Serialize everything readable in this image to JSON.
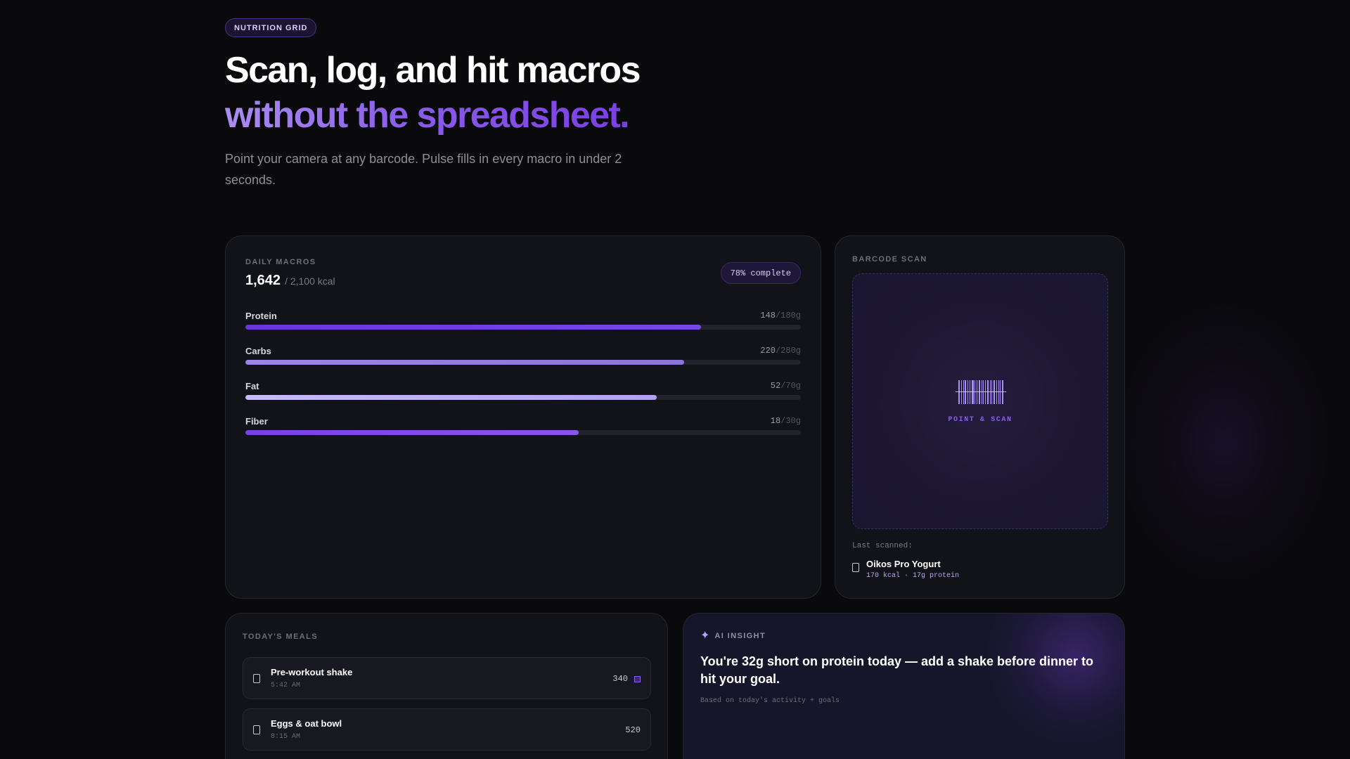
{
  "hero": {
    "badge": "NUTRITION GRID",
    "title_line1": "Scan, log, and hit macros",
    "title_line2": "without the spreadsheet.",
    "subtitle": "Point your camera at any barcode. Pulse fills in every macro in under 2 seconds."
  },
  "macros": {
    "eyebrow": "DAILY MACROS",
    "consumed": "1,642",
    "goal_text": "/ 2,100 kcal",
    "complete": "78% complete",
    "items": [
      {
        "name": "Protein",
        "value": "148",
        "goal": "/180g",
        "progress": 0.82,
        "color": "linear-gradient(90deg,#6d34d8,#7b45e6)"
      },
      {
        "name": "Carbs",
        "value": "220",
        "goal": "/280g",
        "progress": 0.79,
        "color": "linear-gradient(90deg,#9c84ea,#8c74dc)"
      },
      {
        "name": "Fat",
        "value": "52",
        "goal": "/70g",
        "progress": 0.74,
        "color": "linear-gradient(90deg,#c9b9ff,#b3a0f4)"
      },
      {
        "name": "Fiber",
        "value": "18",
        "goal": "/30g",
        "progress": 0.6,
        "color": "linear-gradient(90deg,#7a40e0,#8a55ec)"
      }
    ]
  },
  "scan": {
    "eyebrow": "BARCODE SCAN",
    "label": "POINT & SCAN",
    "last_scanned": "Last scanned:",
    "item_name": "Oikos Pro Yogurt",
    "item_meta": "170 kcal · 17g protein"
  },
  "meals": {
    "eyebrow": "TODAY'S MEALS",
    "items": [
      {
        "name": "Pre-workout shake",
        "time": "5:42 AM",
        "kcal": "340"
      },
      {
        "name": "Eggs & oat bowl",
        "time": "8:15 AM",
        "kcal": "520"
      }
    ]
  },
  "insight": {
    "eyebrow": "AI INSIGHT",
    "icon": "sparkle-icon",
    "text": "You're 32g short on protein today — add a shake before dinner to hit your goal.",
    "note": "Based on today's activity + goals"
  }
}
